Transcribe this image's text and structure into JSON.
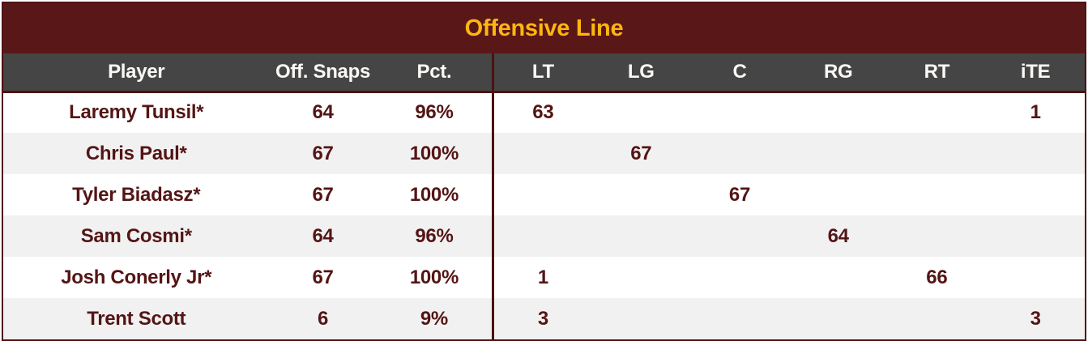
{
  "title": "Offensive Line",
  "colors": {
    "burgundy": "#5a1717",
    "gold": "#ffb612",
    "header_bg": "#454545",
    "header_text": "#faf8f5",
    "row_alt": "#f2f1f2",
    "row_bg": "#ffffff",
    "text_maroon": "#541515",
    "border_maroon": "#4e1212"
  },
  "chart_data": {
    "type": "table",
    "title": "Offensive Line",
    "columns": [
      "Player",
      "Off. Snaps",
      "Pct.",
      "LT",
      "LG",
      "C",
      "RG",
      "RT",
      "iTE"
    ],
    "rows": [
      [
        "Laremy Tunsil*",
        "64",
        "96%",
        "63",
        "",
        "",
        "",
        "",
        "1"
      ],
      [
        "Chris Paul*",
        "67",
        "100%",
        "",
        "67",
        "",
        "",
        "",
        ""
      ],
      [
        "Tyler Biadasz*",
        "67",
        "100%",
        "",
        "",
        "67",
        "",
        "",
        ""
      ],
      [
        "Sam Cosmi*",
        "64",
        "96%",
        "",
        "",
        "",
        "64",
        "",
        ""
      ],
      [
        "Josh Conerly Jr*",
        "67",
        "100%",
        "1",
        "",
        "",
        "",
        "66",
        ""
      ],
      [
        "Trent Scott",
        "6",
        "9%",
        "3",
        "",
        "",
        "",
        "",
        "3"
      ]
    ]
  },
  "table": {
    "headers": [
      "Player",
      "Off. Snaps",
      "Pct.",
      "LT",
      "LG",
      "C",
      "RG",
      "RT",
      "iTE"
    ],
    "rows": [
      {
        "player": "Laremy Tunsil*",
        "snaps": "64",
        "pct": "96%",
        "lt": "63",
        "lg": "",
        "c": "",
        "rg": "",
        "rt": "",
        "ite": "1"
      },
      {
        "player": "Chris Paul*",
        "snaps": "67",
        "pct": "100%",
        "lt": "",
        "lg": "67",
        "c": "",
        "rg": "",
        "rt": "",
        "ite": ""
      },
      {
        "player": "Tyler Biadasz*",
        "snaps": "67",
        "pct": "100%",
        "lt": "",
        "lg": "",
        "c": "67",
        "rg": "",
        "rt": "",
        "ite": ""
      },
      {
        "player": "Sam Cosmi*",
        "snaps": "64",
        "pct": "96%",
        "lt": "",
        "lg": "",
        "c": "",
        "rg": "64",
        "rt": "",
        "ite": ""
      },
      {
        "player": "Josh Conerly Jr*",
        "snaps": "67",
        "pct": "100%",
        "lt": "1",
        "lg": "",
        "c": "",
        "rg": "",
        "rt": "66",
        "ite": ""
      },
      {
        "player": "Trent Scott",
        "snaps": "6",
        "pct": "9%",
        "lt": "3",
        "lg": "",
        "c": "",
        "rg": "",
        "rt": "",
        "ite": "3"
      }
    ]
  }
}
